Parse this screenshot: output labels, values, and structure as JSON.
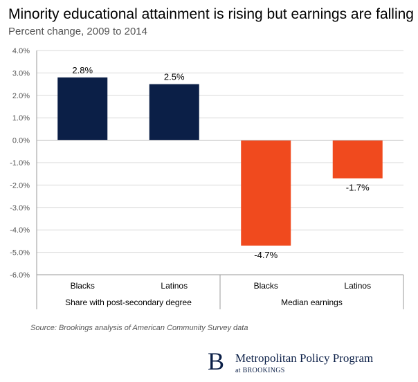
{
  "chart_data": {
    "type": "bar",
    "title": "Minority educational attainment is rising but earnings are falling",
    "subtitle": "Percent change, 2009 to 2014",
    "categories": [
      "Blacks",
      "Latinos",
      "Blacks",
      "Latinos"
    ],
    "groups": [
      {
        "label": "Share with post-secondary degree",
        "categories": [
          "Blacks",
          "Latinos"
        ]
      },
      {
        "label": "Median earnings",
        "categories": [
          "Blacks",
          "Latinos"
        ]
      }
    ],
    "values": [
      2.8,
      2.5,
      -4.7,
      -1.7
    ],
    "data_labels": [
      "2.8%",
      "2.5%",
      "-4.7%",
      "-1.7%"
    ],
    "bar_colors": [
      "#0b1f47",
      "#0b1f47",
      "#f04a1e",
      "#f04a1e"
    ],
    "ylim": [
      -6,
      4
    ],
    "yticks": [
      4,
      3,
      2,
      1,
      0,
      -1,
      -2,
      -3,
      -4,
      -5,
      -6
    ],
    "ytick_labels": [
      "4.0%",
      "3.0%",
      "2.0%",
      "1.0%",
      "0.0%",
      "-1.0%",
      "-2.0%",
      "-3.0%",
      "-4.0%",
      "-5.0%",
      "-6.0%"
    ],
    "grid": true,
    "xlabel": "",
    "ylabel": ""
  },
  "source": "Source: Brookings analysis of American Community Survey data",
  "logo": {
    "letter": "B",
    "program": "Metropolitan Policy Program",
    "at": "at BROOKINGS"
  }
}
